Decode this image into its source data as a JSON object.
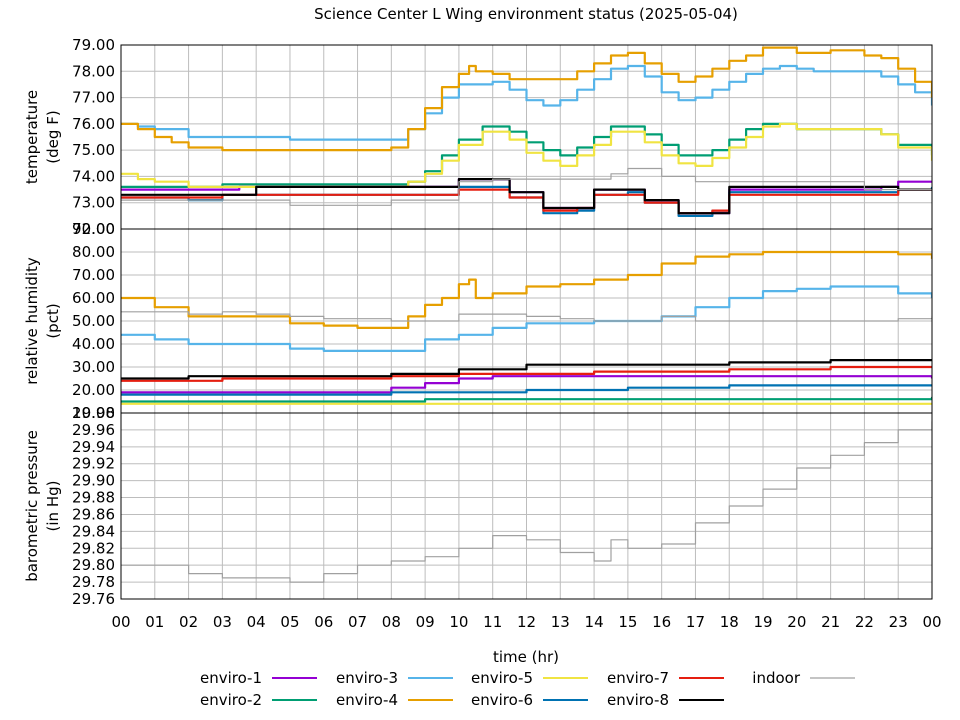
{
  "chart_data": {
    "type": "line",
    "title": "Science Center L Wing environment status (2025-05-04)",
    "xlabel": "time (hr)",
    "x_ticks": [
      "00",
      "01",
      "02",
      "03",
      "04",
      "05",
      "06",
      "07",
      "08",
      "09",
      "10",
      "11",
      "12",
      "13",
      "14",
      "15",
      "16",
      "17",
      "18",
      "19",
      "20",
      "21",
      "22",
      "23",
      "00"
    ],
    "xlim": [
      0,
      24
    ],
    "grid": true,
    "legend_position": "bottom",
    "colors": {
      "enviro-1": "#9400d3",
      "enviro-2": "#009e73",
      "enviro-3": "#56b4e9",
      "enviro-4": "#e69f00",
      "enviro-6": "#f0e442",
      "enviro-5": "#0072b2",
      "enviro-7": "#e51e10",
      "enviro-8": "#000000",
      "indoor": "#a0a0a0"
    },
    "legend": [
      {
        "key": "enviro-1",
        "label": "enviro-1"
      },
      {
        "key": "enviro-2",
        "label": "enviro-2"
      },
      {
        "key": "enviro-3",
        "label": "enviro-3"
      },
      {
        "key": "enviro-4",
        "label": "enviro-4"
      },
      {
        "key": "enviro-6",
        "label": "enviro-5"
      },
      {
        "key": "enviro-5",
        "label": "enviro-6"
      },
      {
        "key": "enviro-7",
        "label": "enviro-7"
      },
      {
        "key": "enviro-8",
        "label": "enviro-8"
      },
      {
        "key": "indoor",
        "label": "indoor"
      }
    ],
    "panels": [
      {
        "name": "temperature",
        "ylabel": [
          "temperature",
          "(deg F)"
        ],
        "ylim": [
          72,
          79
        ],
        "ytick_labels": [
          "72.00",
          "73.00",
          "74.00",
          "75.00",
          "76.00",
          "77.00",
          "78.00",
          "79.00"
        ],
        "series": [
          {
            "key": "enviro-1",
            "x": [
              0,
              3,
              3.5,
              8,
              10,
              11,
              11.5,
              12.5,
              13.5,
              14,
              15,
              15.5,
              16.5,
              17.5,
              18,
              22,
              22.5,
              23,
              24
            ],
            "y": [
              73.5,
              73.5,
              73.6,
              73.6,
              73.9,
              73.9,
              73.4,
              72.8,
              72.8,
              73.5,
              73.5,
              73.1,
              72.6,
              72.6,
              73.5,
              73.5,
              73.6,
              73.8,
              73.8
            ]
          },
          {
            "key": "enviro-2",
            "x": [
              0,
              2.5,
              3,
              8,
              8.5,
              9,
              9.5,
              10,
              10.7,
              11,
              11.5,
              12,
              12.5,
              13,
              13.5,
              14,
              14.5,
              15,
              15.5,
              16,
              16.5,
              17,
              17.5,
              18,
              18.5,
              19,
              19.5,
              20,
              21,
              22,
              22.5,
              23,
              24
            ],
            "y": [
              73.6,
              73.6,
              73.7,
              73.7,
              73.8,
              74.2,
              74.8,
              75.4,
              75.9,
              75.9,
              75.7,
              75.3,
              75.0,
              74.8,
              75.1,
              75.5,
              75.9,
              75.9,
              75.6,
              75.2,
              74.8,
              74.8,
              75.0,
              75.4,
              75.8,
              76.0,
              76.0,
              75.8,
              75.8,
              75.8,
              75.6,
              75.2,
              74.8
            ]
          },
          {
            "key": "enviro-3",
            "x": [
              0,
              0.5,
              1,
              2,
              5,
              6,
              7,
              8,
              8.5,
              9,
              9.5,
              10,
              11,
              11.5,
              12,
              12.5,
              13,
              13.5,
              14,
              14.5,
              15,
              15.5,
              16,
              16.5,
              17,
              17.5,
              18,
              18.5,
              19,
              19.5,
              20,
              20.5,
              21,
              22,
              22.5,
              23,
              23.5,
              24
            ],
            "y": [
              76.0,
              75.9,
              75.8,
              75.5,
              75.4,
              75.4,
              75.4,
              75.4,
              75.8,
              76.4,
              77.0,
              77.5,
              77.6,
              77.3,
              76.9,
              76.7,
              76.9,
              77.3,
              77.7,
              78.1,
              78.2,
              77.8,
              77.2,
              76.9,
              77.0,
              77.3,
              77.6,
              77.9,
              78.1,
              78.2,
              78.1,
              78.0,
              78.0,
              78.0,
              77.8,
              77.5,
              77.2,
              76.7
            ]
          },
          {
            "key": "enviro-4",
            "x": [
              0,
              0.5,
              1,
              1.5,
              2,
              3,
              5,
              6,
              7,
              8,
              8.5,
              9,
              9.5,
              10,
              10.3,
              10.5,
              11,
              11.5,
              12,
              13,
              13.5,
              14,
              14.5,
              15,
              15.5,
              16,
              16.5,
              17,
              17.5,
              18,
              18.5,
              19,
              19.5,
              20,
              20.5,
              21,
              22,
              22.5,
              23,
              23.5,
              24
            ],
            "y": [
              76.0,
              75.8,
              75.5,
              75.3,
              75.1,
              75.0,
              75.0,
              75.0,
              75.0,
              75.1,
              75.8,
              76.6,
              77.4,
              77.9,
              78.2,
              78.0,
              77.9,
              77.7,
              77.7,
              77.7,
              78.0,
              78.3,
              78.6,
              78.7,
              78.3,
              77.9,
              77.6,
              77.8,
              78.1,
              78.4,
              78.6,
              78.9,
              78.9,
              78.7,
              78.7,
              78.8,
              78.6,
              78.5,
              78.1,
              77.6,
              77.0
            ]
          },
          {
            "key": "enviro-6",
            "x": [
              0,
              0.5,
              1,
              2,
              8,
              8.5,
              9,
              9.5,
              10,
              10.7,
              11,
              11.5,
              12,
              12.5,
              13,
              13.5,
              14,
              14.5,
              15,
              15.5,
              16,
              16.5,
              17,
              17.5,
              18,
              18.5,
              19,
              19.5,
              20,
              21,
              22,
              22.5,
              23,
              24
            ],
            "y": [
              74.1,
              73.9,
              73.8,
              73.6,
              73.6,
              73.8,
              74.1,
              74.6,
              75.2,
              75.7,
              75.7,
              75.4,
              74.9,
              74.6,
              74.4,
              74.8,
              75.2,
              75.7,
              75.7,
              75.3,
              74.8,
              74.5,
              74.4,
              74.7,
              75.1,
              75.5,
              75.9,
              76.0,
              75.8,
              75.8,
              75.8,
              75.6,
              75.1,
              74.6
            ]
          },
          {
            "key": "enviro-5",
            "x": [
              0,
              2,
              3,
              8,
              10,
              11,
              11.5,
              12.5,
              13.5,
              14,
              15,
              15.5,
              16.5,
              17.5,
              18,
              22,
              23,
              24
            ],
            "y": [
              73.2,
              73.1,
              73.3,
              73.3,
              73.6,
              73.6,
              73.2,
              72.6,
              72.7,
              73.3,
              73.4,
              73.0,
              72.5,
              72.7,
              73.4,
              73.4,
              73.5,
              73.6
            ]
          },
          {
            "key": "enviro-7",
            "x": [
              0,
              2,
              3,
              8,
              10,
              11,
              11.5,
              12.5,
              13.5,
              14,
              15,
              15.5,
              16.5,
              17.5,
              18,
              22,
              23,
              24
            ],
            "y": [
              73.2,
              73.2,
              73.3,
              73.3,
              73.5,
              73.5,
              73.2,
              72.7,
              72.8,
              73.3,
              73.3,
              73.0,
              72.6,
              72.7,
              73.3,
              73.3,
              73.5,
              73.5
            ]
          },
          {
            "key": "enviro-8",
            "x": [
              0,
              3,
              4,
              8,
              10,
              11,
              11.5,
              12.5,
              13.5,
              14,
              15,
              15.5,
              16.5,
              17.5,
              18,
              22,
              23,
              24
            ],
            "y": [
              73.3,
              73.3,
              73.6,
              73.6,
              73.9,
              73.9,
              73.4,
              72.8,
              72.8,
              73.5,
              73.5,
              73.1,
              72.6,
              72.6,
              73.6,
              73.6,
              73.5,
              73.5
            ]
          },
          {
            "key": "indoor",
            "x": [
              0,
              3,
              5,
              6,
              7,
              8,
              10,
              11,
              12,
              13,
              14,
              14.5,
              15,
              16,
              17,
              18,
              20,
              22,
              23,
              24
            ],
            "y": [
              73.1,
              73.1,
              72.9,
              72.9,
              72.9,
              73.1,
              73.8,
              73.9,
              73.9,
              73.9,
              73.9,
              74.1,
              74.3,
              74.0,
              73.8,
              73.8,
              73.8,
              73.5,
              73.5,
              73.5
            ]
          }
        ]
      },
      {
        "name": "humidity",
        "ylabel": [
          "relative humidity",
          "(pct)"
        ],
        "ylim": [
          10,
          90
        ],
        "ytick_labels": [
          "10.00",
          "20.00",
          "30.00",
          "40.00",
          "50.00",
          "60.00",
          "70.00",
          "80.00",
          "90.00"
        ],
        "series": [
          {
            "key": "enviro-1",
            "x": [
              0,
              3.5,
              8,
              9,
              10,
              11,
              14,
              24
            ],
            "y": [
              19,
              19,
              21,
              23,
              25,
              26,
              26,
              25
            ]
          },
          {
            "key": "enviro-2",
            "x": [
              0,
              8,
              9,
              11,
              13,
              17,
              24
            ],
            "y": [
              15,
              15,
              16,
              16,
              16,
              16,
              17
            ]
          },
          {
            "key": "enviro-3",
            "x": [
              0,
              1,
              2,
              4,
              5,
              6,
              7,
              8,
              9,
              10,
              11,
              12,
              13,
              14,
              15,
              16,
              17,
              18,
              19,
              20,
              21,
              22,
              23,
              24
            ],
            "y": [
              44,
              42,
              40,
              40,
              38,
              37,
              37,
              37,
              42,
              44,
              47,
              49,
              49,
              50,
              50,
              52,
              56,
              60,
              63,
              64,
              65,
              65,
              62,
              60
            ]
          },
          {
            "key": "enviro-4",
            "x": [
              0,
              1,
              2,
              3,
              4,
              5,
              6,
              7,
              8,
              8.5,
              9,
              9.5,
              10,
              10.3,
              10.5,
              11,
              12,
              13,
              14,
              15,
              16,
              17,
              18,
              19,
              20,
              21,
              22,
              23,
              24
            ],
            "y": [
              60,
              56,
              52,
              52,
              52,
              49,
              48,
              47,
              47,
              52,
              57,
              60,
              66,
              68,
              60,
              62,
              65,
              66,
              68,
              70,
              75,
              78,
              79,
              80,
              80,
              80,
              80,
              79,
              77
            ]
          },
          {
            "key": "enviro-6",
            "x": [
              0,
              24
            ],
            "y": [
              14,
              14
            ]
          },
          {
            "key": "enviro-5",
            "x": [
              0,
              4,
              8,
              12,
              15,
              18,
              24
            ],
            "y": [
              18,
              18,
              19,
              20,
              21,
              22,
              22
            ]
          },
          {
            "key": "enviro-7",
            "x": [
              0,
              3,
              8,
              10,
              14,
              18,
              21,
              24
            ],
            "y": [
              24,
              25,
              26,
              27,
              28,
              29,
              30,
              30
            ]
          },
          {
            "key": "enviro-8",
            "x": [
              0,
              2,
              4,
              8,
              10,
              12,
              15,
              18,
              21,
              24
            ],
            "y": [
              25,
              26,
              26,
              27,
              29,
              31,
              31,
              32,
              33,
              33
            ]
          },
          {
            "key": "indoor",
            "x": [
              0,
              1,
              2,
              3,
              4,
              5,
              6,
              7,
              8,
              10,
              11,
              12,
              13,
              14,
              15,
              16,
              17,
              18,
              19,
              20,
              21,
              22,
              23,
              24
            ],
            "y": [
              54,
              54,
              53,
              54,
              53,
              52,
              51,
              51,
              50,
              53,
              53,
              52,
              51,
              50,
              50,
              52,
              50,
              50,
              50,
              50,
              50,
              50,
              51,
              52
            ]
          }
        ]
      },
      {
        "name": "pressure",
        "ylabel": [
          "barometric pressure",
          "(in Hg)"
        ],
        "ylim": [
          29.76,
          29.98
        ],
        "ytick_labels": [
          "29.76",
          "29.78",
          "29.80",
          "29.82",
          "29.84",
          "29.86",
          "29.88",
          "29.90",
          "29.92",
          "29.94",
          "29.96",
          "29.98"
        ],
        "series": [
          {
            "key": "indoor",
            "x": [
              0,
              1,
              2,
              3,
              4,
              5,
              6,
              7,
              8,
              9,
              10,
              11,
              12,
              13,
              14,
              14.5,
              15,
              16,
              17,
              18,
              19,
              20,
              21,
              22,
              23,
              24
            ],
            "y": [
              29.8,
              29.8,
              29.79,
              29.785,
              29.785,
              29.78,
              29.79,
              29.8,
              29.805,
              29.81,
              29.82,
              29.835,
              29.83,
              29.815,
              29.805,
              29.83,
              29.82,
              29.825,
              29.85,
              29.87,
              29.89,
              29.915,
              29.93,
              29.945,
              29.96,
              29.97
            ]
          }
        ]
      }
    ]
  }
}
